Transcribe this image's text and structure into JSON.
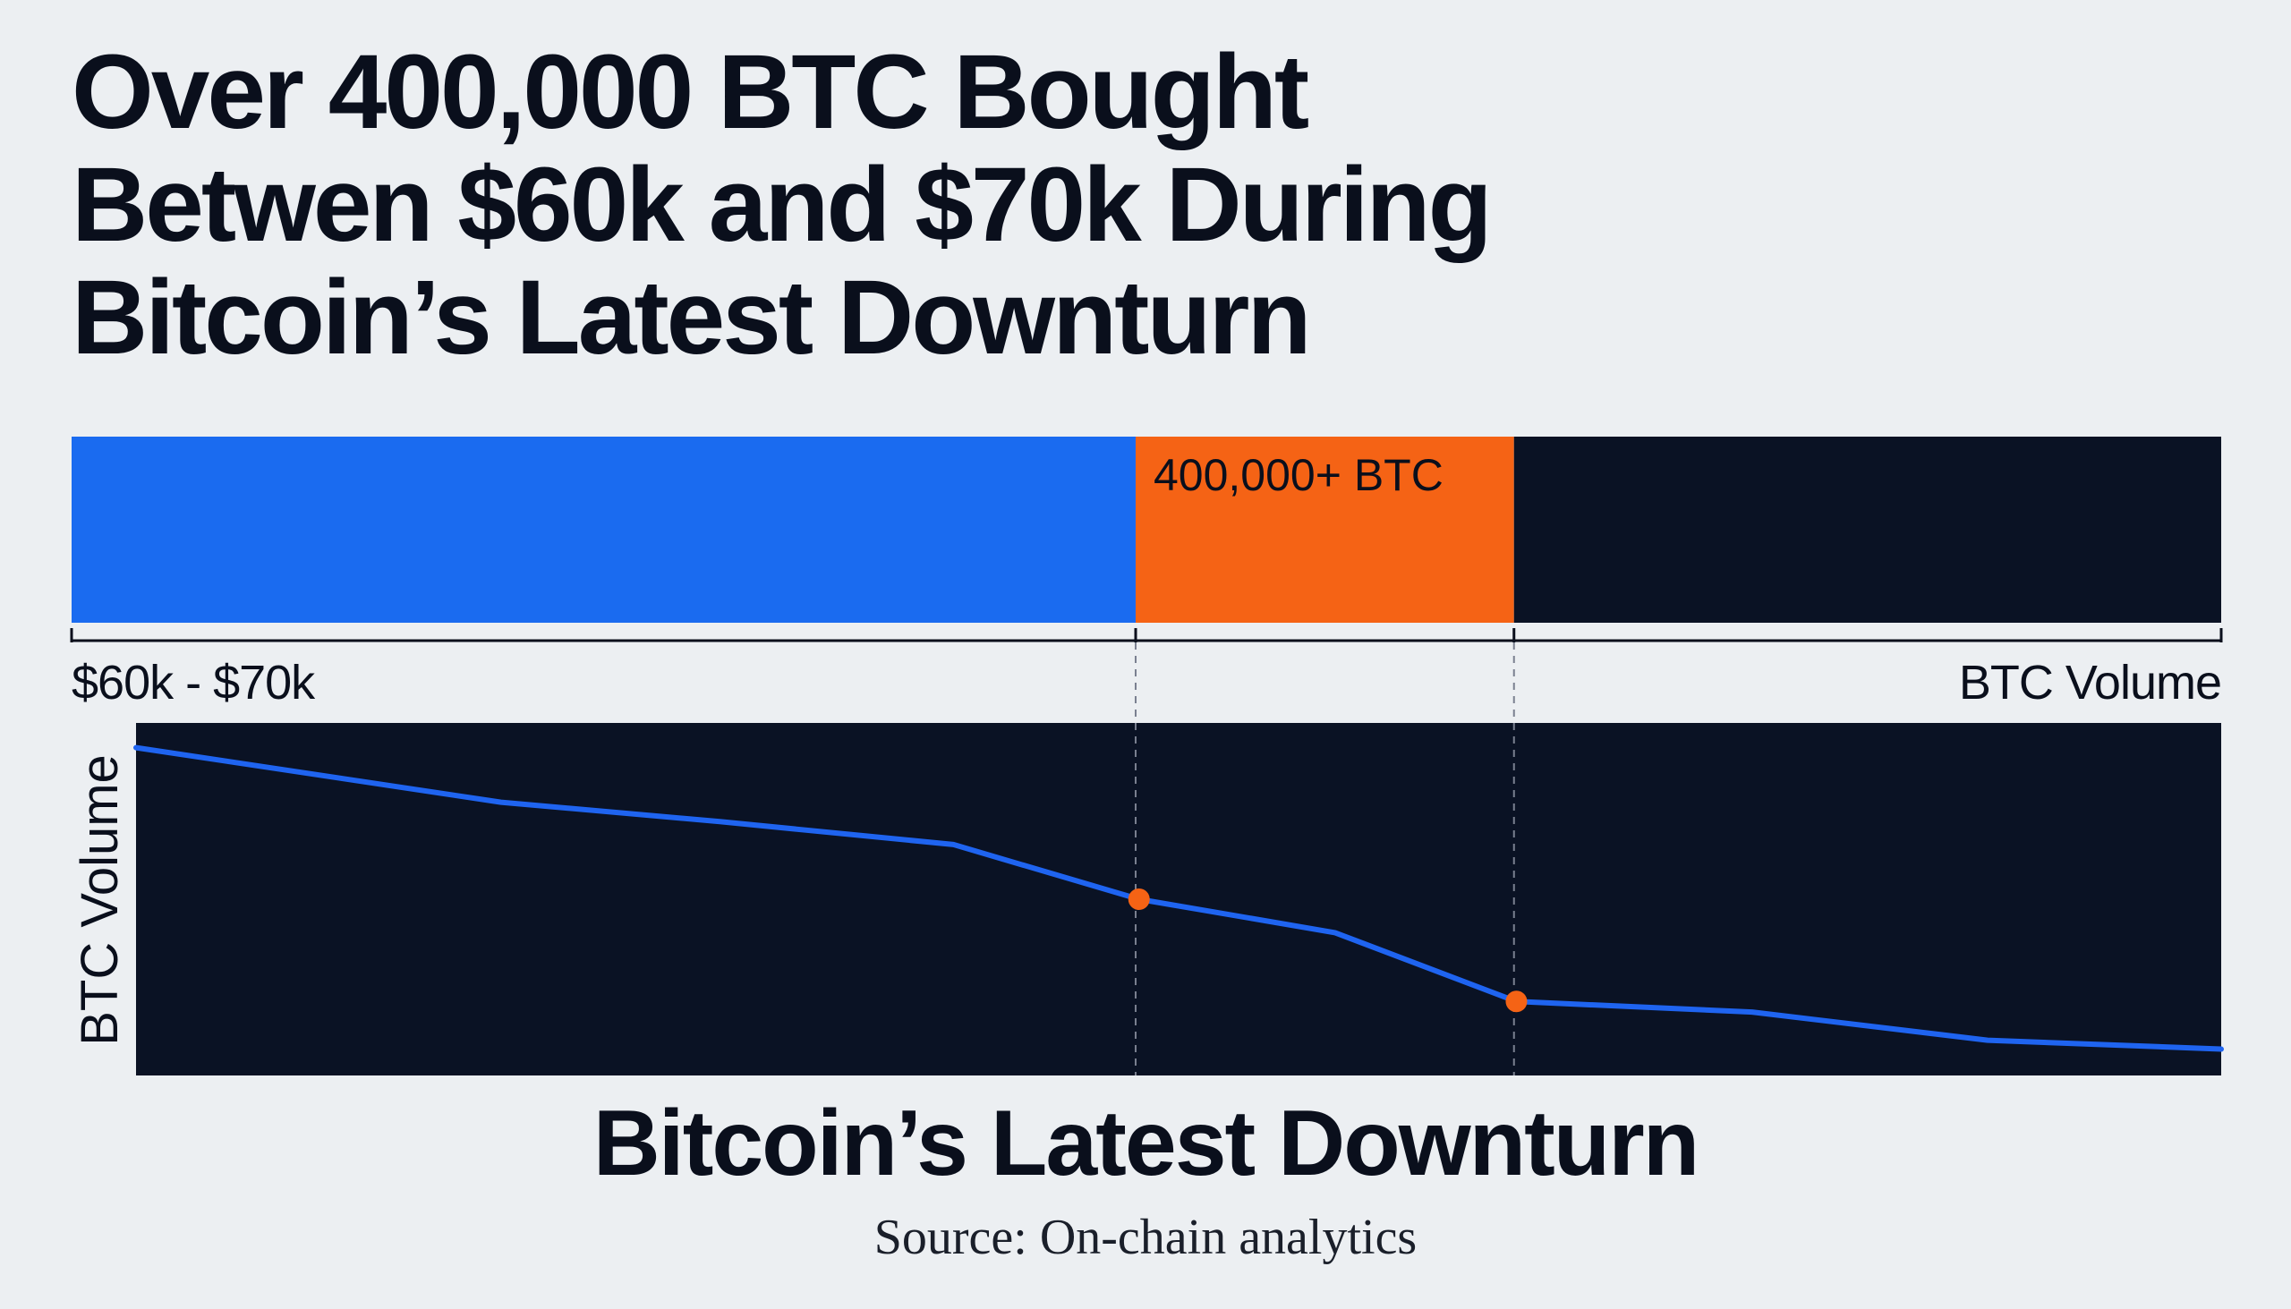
{
  "headline": {
    "line1": "Over 400,000 BTC Bought",
    "line2": "Betwen $60k and $70k During",
    "line3": "Bitcoin’s Latest Downturn"
  },
  "colors": {
    "background": "#eceff2",
    "blue": "#1a6bf0",
    "orange": "#f56315",
    "dark": "#0a1224",
    "line": "#1f64f0",
    "text": "#0a0f1c"
  },
  "chart_data": [
    {
      "type": "bar",
      "title": "",
      "segments": [
        {
          "label": "",
          "share": 0.495,
          "color": "#1a6bf0"
        },
        {
          "label": "400,000+ BTC",
          "share": 0.176,
          "color": "#f56315"
        },
        {
          "label": "",
          "share": 0.329,
          "color": "#0a1224"
        }
      ],
      "xlabel_left": "$60k - $70k",
      "xlabel_right": "BTC Volume"
    },
    {
      "type": "line",
      "ylabel": "BTC Volume",
      "xlabel": "Bitcoin’s Latest Downturn",
      "x": [
        0,
        0.175,
        0.28,
        0.392,
        0.481,
        0.575,
        0.662,
        0.775,
        0.888,
        1.0
      ],
      "y": [
        0.93,
        0.775,
        0.72,
        0.655,
        0.5,
        0.405,
        0.21,
        0.18,
        0.1,
        0.075
      ],
      "xlim": [
        0,
        1
      ],
      "ylim": [
        0,
        1
      ],
      "highlight_points": [
        4,
        6
      ],
      "grid": false
    }
  ],
  "source": "Source: On-chain analytics"
}
